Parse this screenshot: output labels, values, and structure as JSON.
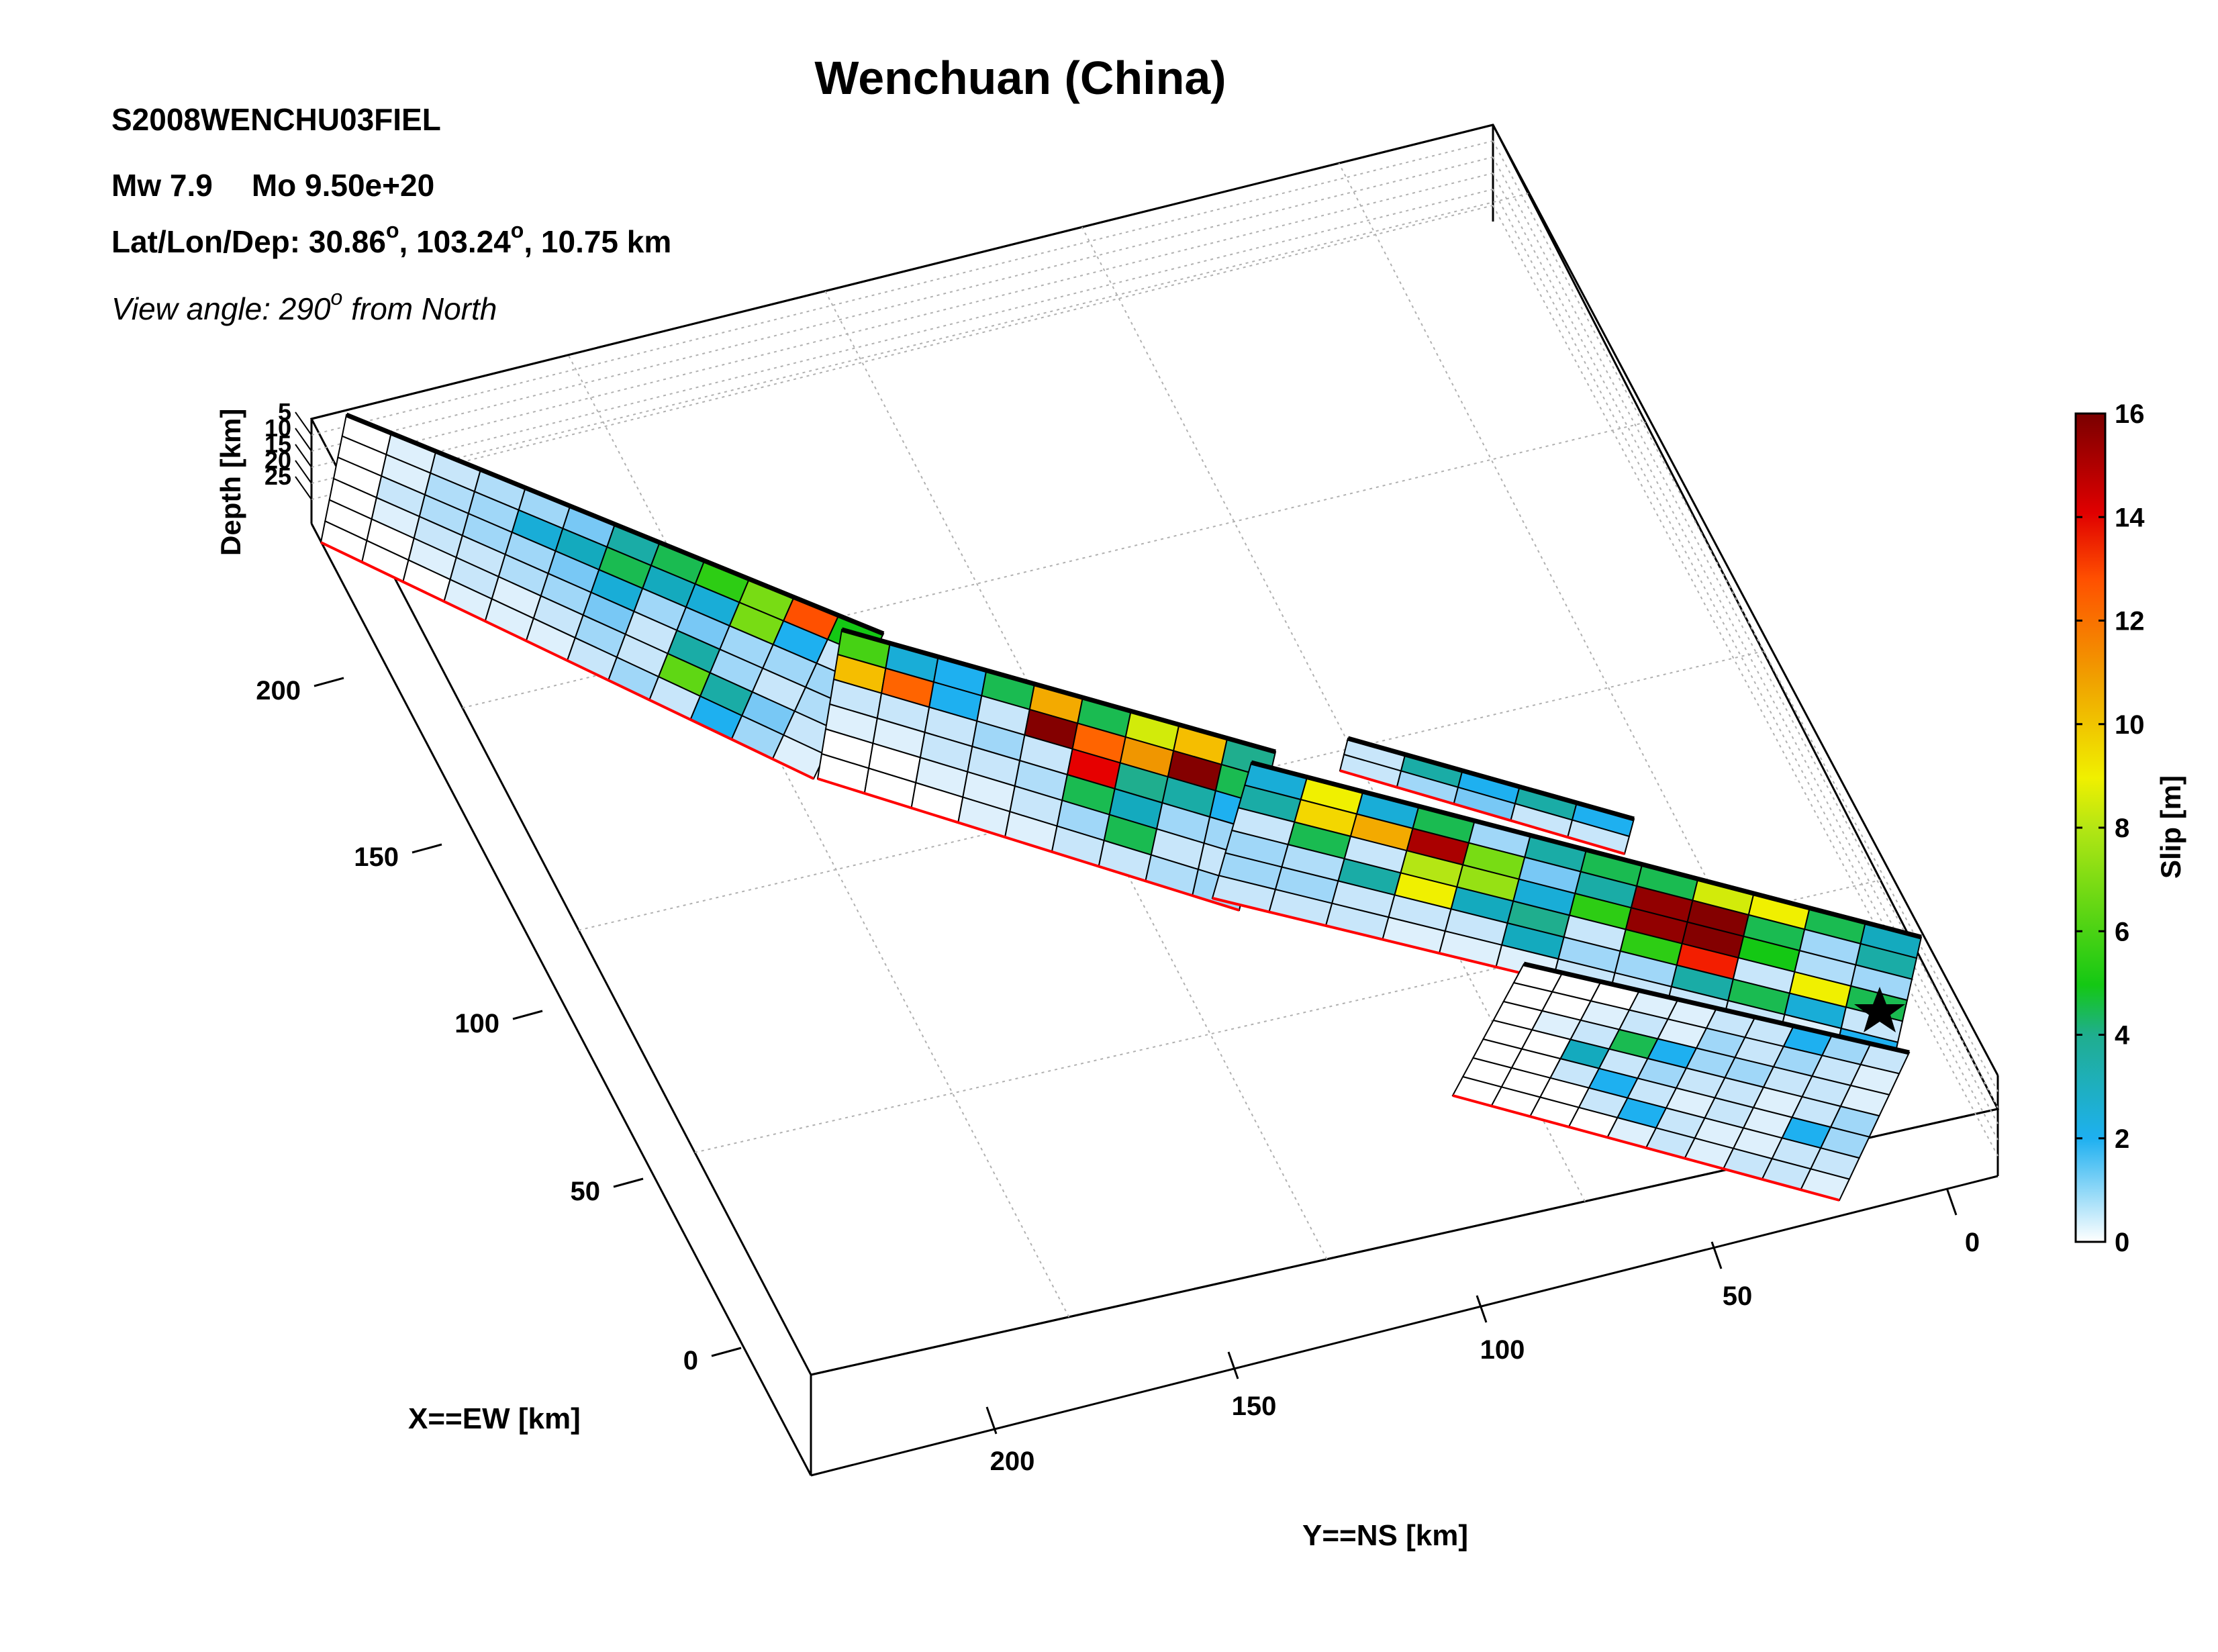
{
  "title": "Wenchuan (China)",
  "event_id": "S2008WENCHU03FIEL",
  "magnitude_label": "Mw 7.9",
  "moment_label": "Mo 9.50e+20",
  "location": {
    "prefix": "Lat/Lon/Dep: ",
    "lat": "30.86",
    "lon": "103.24",
    "dep": "10.75 km",
    "degree_symbol": "o"
  },
  "view": {
    "prefix": "View angle: ",
    "angle": "290",
    "degree_symbol": "o",
    "suffix": " from North"
  },
  "colors": {
    "fault_bottom_edge": "#ff0000",
    "grid": "#b0b0b0",
    "hypocenter": "#000000"
  },
  "chart_data": {
    "type": "heatmap",
    "title": "Wenchuan (China)",
    "axes": {
      "x": {
        "label": "X==EW [km]",
        "ticks": [
          0,
          50,
          100,
          150,
          200
        ]
      },
      "y": {
        "label": "Y==NS [km]",
        "ticks": [
          0,
          50,
          100,
          150,
          200
        ]
      },
      "z": {
        "label": "Depth [km]",
        "ticks": [
          5,
          10,
          15,
          20,
          25
        ]
      }
    },
    "colorbar": {
      "label": "Slip [m]",
      "ticks": [
        0,
        2,
        4,
        6,
        8,
        10,
        12,
        14,
        16
      ],
      "range": [
        0,
        16
      ],
      "colormap": "white-blue-green-yellow-red-darkred"
    },
    "segments": [
      {
        "name": "",
        "slip": [
          [
            0.0,
            0.3,
            0.5,
            0.8,
            1.0,
            1.5,
            3.5,
            4.5,
            5.5,
            7.0,
            12.5,
            5.0
          ],
          [
            0.0,
            0.3,
            0.8,
            1.0,
            2.5,
            3.0,
            4.5,
            3.0,
            2.5,
            7.0,
            2.0,
            0.5
          ],
          [
            0.0,
            0.5,
            0.8,
            1.0,
            1.0,
            1.5,
            2.5,
            1.0,
            1.5,
            1.0,
            1.0,
            1.0
          ],
          [
            0.0,
            0.3,
            0.5,
            0.5,
            0.8,
            1.0,
            1.5,
            0.5,
            3.5,
            1.0,
            0.5,
            0.8
          ],
          [
            0.0,
            0.0,
            0.3,
            0.5,
            0.3,
            0.5,
            1.0,
            0.5,
            6.5,
            3.5,
            1.5,
            0.5
          ],
          [
            0.0,
            0.0,
            0.0,
            0.3,
            0.3,
            0.3,
            0.5,
            1.0,
            0.5,
            2.0,
            1.0,
            0.3
          ]
        ]
      },
      {
        "name": "",
        "slip": [
          [
            6.0,
            2.5,
            2.0,
            4.5,
            10.5,
            4.5,
            8.5,
            10.0,
            4.0
          ],
          [
            10.0,
            12.0,
            2.0,
            0.5,
            15.8,
            12.0,
            11.0,
            15.8,
            4.5
          ],
          [
            0.5,
            0.5,
            0.5,
            1.0,
            0.5,
            14.0,
            4.0,
            3.5,
            2.0
          ],
          [
            0.3,
            0.3,
            0.5,
            0.5,
            0.8,
            4.5,
            3.0,
            1.0,
            1.0
          ],
          [
            0.0,
            0.0,
            0.3,
            0.3,
            0.5,
            1.0,
            4.5,
            0.5,
            0.5
          ],
          [
            0.0,
            0.0,
            0.0,
            0.3,
            0.3,
            0.5,
            0.5,
            0.8,
            1.0
          ]
        ]
      },
      {
        "name": "",
        "slip": [
          [
            0.5,
            3.5,
            2.0,
            3.5,
            2.0
          ],
          [
            0.5,
            1.0,
            1.5,
            0.5,
            0.5
          ]
        ]
      },
      {
        "name": "",
        "slip": [
          [
            2.5,
            9.0,
            2.5,
            4.5,
            1.0,
            3.5,
            4.5,
            4.5,
            8.5,
            9.0,
            4.5,
            3.0
          ],
          [
            3.5,
            9.5,
            10.5,
            15.0,
            7.0,
            1.5,
            3.5,
            15.5,
            15.8,
            4.5,
            1.0,
            3.5
          ],
          [
            0.5,
            4.5,
            0.5,
            8.0,
            7.5,
            2.5,
            5.5,
            15.5,
            15.8,
            5.0,
            0.8,
            1.0
          ],
          [
            1.0,
            0.8,
            3.5,
            9.0,
            3.0,
            4.0,
            0.5,
            5.5,
            13.5,
            0.5,
            9.0,
            4.5
          ],
          [
            1.0,
            1.0,
            0.5,
            0.5,
            0.5,
            3.0,
            1.0,
            1.0,
            3.5,
            4.5,
            2.5,
            0.5
          ],
          [
            0.5,
            0.5,
            0.5,
            0.3,
            0.3,
            0.3,
            0.5,
            0.5,
            0.5,
            0.5,
            0.3,
            2.0
          ]
        ]
      },
      {
        "name": "",
        "slip": [
          [
            0.0,
            0.0,
            0.0,
            0.3,
            0.3,
            0.5,
            0.5,
            2.0,
            1.0,
            0.5
          ],
          [
            0.0,
            0.0,
            0.3,
            0.5,
            0.3,
            1.0,
            0.5,
            1.0,
            0.5,
            0.3
          ],
          [
            0.0,
            0.3,
            0.5,
            4.5,
            2.0,
            1.0,
            1.0,
            0.5,
            0.5,
            0.3
          ],
          [
            0.0,
            0.0,
            3.0,
            0.5,
            1.0,
            0.5,
            0.5,
            0.3,
            0.5,
            1.0
          ],
          [
            0.0,
            0.0,
            0.5,
            2.0,
            0.5,
            0.3,
            0.5,
            0.3,
            2.0,
            1.0
          ],
          [
            0.0,
            0.0,
            0.0,
            0.5,
            2.0,
            0.5,
            0.3,
            0.3,
            0.5,
            0.5
          ],
          [
            0.0,
            0.0,
            0.0,
            0.0,
            0.3,
            0.5,
            0.3,
            0.5,
            0.5,
            0.3
          ]
        ]
      }
    ]
  }
}
